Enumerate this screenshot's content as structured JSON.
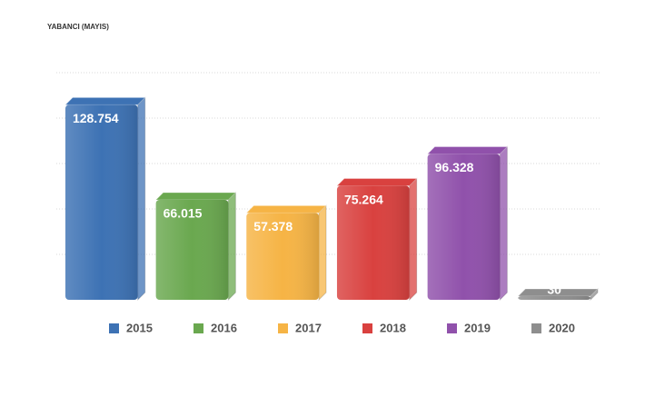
{
  "chart_data": {
    "type": "bar3d",
    "title": "YABANCI (MAYIS)",
    "categories": [
      "2015",
      "2016",
      "2017",
      "2018",
      "2019",
      "2020"
    ],
    "values": [
      128754,
      66015,
      57378,
      75264,
      96328,
      30
    ],
    "value_labels": [
      "128.754",
      "66.015",
      "57.378",
      "75.264",
      "96.328",
      "30"
    ],
    "colors": [
      "#3d72b4",
      "#6aa84f",
      "#f6b445",
      "#d9413f",
      "#9051ab",
      "#8e8e8e"
    ],
    "ylim": [
      0,
      150000
    ],
    "yticks": [
      30000,
      60000,
      90000,
      120000,
      150000
    ],
    "grid": true
  }
}
